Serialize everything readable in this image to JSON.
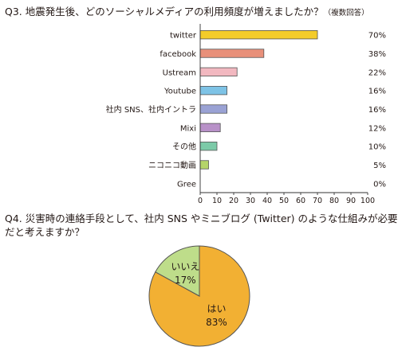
{
  "q3": {
    "title": "Q3.  地震発生後、どのソーシャルメディアの利用頻度が増えましたか？",
    "note": "（複数回答）"
  },
  "q4": {
    "title_line1": "Q4.  災害時の連絡手段として、社内 SNS やミニブログ (Twitter) のような仕組みが必要",
    "title_line2": "だと考えますか？"
  },
  "chart_data": [
    {
      "type": "bar",
      "orientation": "horizontal",
      "categories": [
        "twitter",
        "facebook",
        "Ustream",
        "Youtube",
        "社内 SNS、社内イントラ",
        "Mixi",
        "その他",
        "ニコニコ動画",
        "Gree"
      ],
      "values": [
        70,
        38,
        22,
        16,
        16,
        12,
        10,
        5,
        0
      ],
      "value_labels": [
        "70%",
        "38%",
        "22%",
        "16%",
        "16%",
        "12%",
        "10%",
        "5%",
        "0%"
      ],
      "colors": [
        "#f4cc2a",
        "#e8907a",
        "#f2b8c0",
        "#7ec3e6",
        "#9aa2d4",
        "#b891c8",
        "#7ccaa8",
        "#b5d46a",
        "#cccccc"
      ],
      "xlim": [
        0,
        100
      ],
      "xticks": [
        "0",
        "10",
        "20",
        "30",
        "40",
        "50",
        "60",
        "70",
        "80",
        "90",
        "100"
      ],
      "grid": false
    },
    {
      "type": "pie",
      "categories": [
        "はい",
        "いいえ"
      ],
      "values": [
        83,
        17
      ],
      "value_labels": [
        "83%",
        "17%"
      ],
      "colors": [
        "#f2b033",
        "#bedd8a"
      ]
    }
  ]
}
